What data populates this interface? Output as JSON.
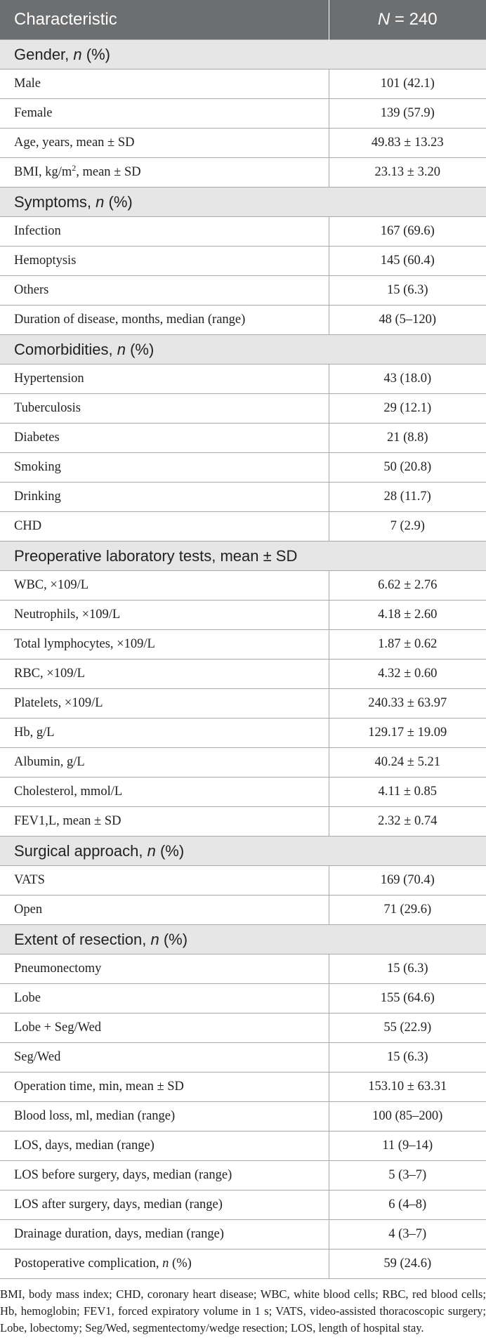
{
  "header": {
    "characteristic": "Characteristic",
    "n_label": "N",
    "n_value": "= 240"
  },
  "sections": [
    {
      "title": "Gender,",
      "title_italic": "n",
      "title_suffix": "(%)",
      "rows": [
        {
          "label": "Male",
          "value": "101 (42.1)"
        },
        {
          "label": "Female",
          "value": "139 (57.9)"
        },
        {
          "label": "Age, years, mean ± SD",
          "value": "49.83 ± 13.23"
        },
        {
          "label_pre": "BMI, kg/m",
          "label_sup": "2",
          "label_post": ", mean ± SD",
          "value": "23.13 ± 3.20"
        }
      ]
    },
    {
      "title": "Symptoms,",
      "title_italic": "n",
      "title_suffix": "(%)",
      "rows": [
        {
          "label": "Infection",
          "value": "167 (69.6)"
        },
        {
          "label": "Hemoptysis",
          "value": "145 (60.4)"
        },
        {
          "label": "Others",
          "value": "15 (6.3)"
        },
        {
          "label": "Duration of disease, months, median (range)",
          "value": "48 (5–120)"
        }
      ]
    },
    {
      "title": "Comorbidities,",
      "title_italic": "n",
      "title_suffix": "(%)",
      "rows": [
        {
          "label": "Hypertension",
          "value": "43 (18.0)"
        },
        {
          "label": "Tuberculosis",
          "value": "29 (12.1)"
        },
        {
          "label": "Diabetes",
          "value": "21 (8.8)"
        },
        {
          "label": "Smoking",
          "value": "50 (20.8)"
        },
        {
          "label": "Drinking",
          "value": "28 (11.7)"
        },
        {
          "label": "CHD",
          "value": "7 (2.9)"
        }
      ]
    },
    {
      "title": "Preoperative laboratory tests, mean ± SD",
      "rows": [
        {
          "label": "WBC, ×109/L",
          "value": "6.62 ± 2.76"
        },
        {
          "label": "Neutrophils, ×109/L",
          "value": "4.18 ± 2.60"
        },
        {
          "label": "Total lymphocytes, ×109/L",
          "value": "1.87 ± 0.62"
        },
        {
          "label": "RBC, ×109/L",
          "value": "4.32 ± 0.60"
        },
        {
          "label": "Platelets, ×109/L",
          "value": "240.33 ± 63.97"
        },
        {
          "label": "Hb, g/L",
          "value": "129.17 ± 19.09"
        },
        {
          "label": "Albumin, g/L",
          "value": "40.24 ± 5.21"
        },
        {
          "label": "Cholesterol, mmol/L",
          "value": "4.11 ± 0.85"
        },
        {
          "label": "FEV1,L, mean ± SD",
          "value": "2.32 ± 0.74"
        }
      ]
    },
    {
      "title": "Surgical approach,",
      "title_italic": "n",
      "title_suffix": "(%)",
      "rows": [
        {
          "label": "VATS",
          "value": "169 (70.4)"
        },
        {
          "label": "Open",
          "value": "71 (29.6)"
        }
      ]
    },
    {
      "title": "Extent of resection,",
      "title_italic": "n",
      "title_suffix": "(%)",
      "rows": [
        {
          "label": "Pneumonectomy",
          "value": "15 (6.3)"
        },
        {
          "label": "Lobe",
          "value": "155 (64.6)"
        },
        {
          "label": "Lobe + Seg/Wed",
          "value": "55 (22.9)"
        },
        {
          "label": "Seg/Wed",
          "value": "15 (6.3)"
        },
        {
          "label": "Operation time, min, mean ± SD",
          "value": "153.10 ± 63.31"
        },
        {
          "label": "Blood loss, ml, median (range)",
          "value": "100 (85–200)"
        },
        {
          "label": "LOS, days, median (range)",
          "value": "11 (9–14)"
        },
        {
          "label": "LOS before surgery, days, median (range)",
          "value": "5 (3–7)"
        },
        {
          "label": "LOS after surgery, days, median (range)",
          "value": "6 (4–8)"
        },
        {
          "label": "Drainage duration, days, median (range)",
          "value": "4 (3–7)"
        },
        {
          "label_pre": "Postoperative complication,",
          "label_italic": "n",
          "label_post": "(%)",
          "value": "59 (24.6)"
        }
      ]
    }
  ],
  "footnote": "BMI, body mass index; CHD, coronary heart disease; WBC, white blood cells; RBC, red blood cells; Hb, hemoglobin; FEV1, forced expiratory volume in 1 s; VATS, video-assisted thoracoscopic surgery; Lobe, lobectomy; Seg/Wed, segmentectomy/wedge resection; LOS, length of hospital stay."
}
